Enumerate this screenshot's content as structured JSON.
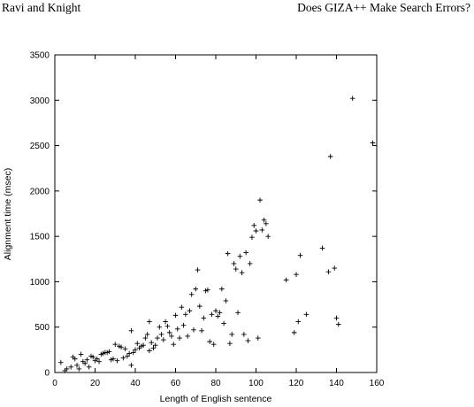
{
  "header": {
    "left": "Ravi and Knight",
    "right": "Does GIZA++ Make Search Errors?"
  },
  "chart_data": {
    "type": "scatter",
    "title": "",
    "xlabel": "Length of English sentence",
    "ylabel": "Alignment time (msec)",
    "xlim": [
      0,
      160
    ],
    "ylim": [
      0,
      3500
    ],
    "xticks": [
      0,
      20,
      40,
      60,
      80,
      100,
      120,
      140,
      160
    ],
    "yticks": [
      0,
      500,
      1000,
      1500,
      2000,
      2500,
      3000,
      3500
    ],
    "xtick_labels": [
      "0",
      "20",
      "40",
      "60",
      "80",
      "100",
      "120",
      "140",
      "160"
    ],
    "ytick_labels": [
      "0",
      "500",
      "1000",
      "1500",
      "2000",
      "2500",
      "3000",
      "3500"
    ],
    "grid": false,
    "marker": "+",
    "series": [
      {
        "points": [
          [
            3,
            110
          ],
          [
            5,
            20
          ],
          [
            6,
            40
          ],
          [
            8,
            60
          ],
          [
            9,
            170
          ],
          [
            10,
            150
          ],
          [
            11,
            80
          ],
          [
            12,
            40
          ],
          [
            13,
            200
          ],
          [
            14,
            120
          ],
          [
            15,
            100
          ],
          [
            16,
            140
          ],
          [
            17,
            60
          ],
          [
            18,
            180
          ],
          [
            19,
            170
          ],
          [
            20,
            130
          ],
          [
            21,
            150
          ],
          [
            22,
            120
          ],
          [
            23,
            200
          ],
          [
            24,
            210
          ],
          [
            25,
            220
          ],
          [
            26,
            220
          ],
          [
            27,
            230
          ],
          [
            28,
            140
          ],
          [
            29,
            150
          ],
          [
            30,
            310
          ],
          [
            31,
            130
          ],
          [
            32,
            290
          ],
          [
            33,
            280
          ],
          [
            34,
            160
          ],
          [
            35,
            260
          ],
          [
            36,
            180
          ],
          [
            37,
            210
          ],
          [
            38,
            80
          ],
          [
            38,
            460
          ],
          [
            39,
            220
          ],
          [
            40,
            250
          ],
          [
            41,
            320
          ],
          [
            42,
            270
          ],
          [
            43,
            290
          ],
          [
            44,
            300
          ],
          [
            45,
            380
          ],
          [
            46,
            420
          ],
          [
            47,
            560
          ],
          [
            47,
            240
          ],
          [
            48,
            330
          ],
          [
            49,
            270
          ],
          [
            50,
            300
          ],
          [
            51,
            380
          ],
          [
            52,
            500
          ],
          [
            53,
            420
          ],
          [
            54,
            360
          ],
          [
            55,
            560
          ],
          [
            56,
            510
          ],
          [
            57,
            440
          ],
          [
            58,
            400
          ],
          [
            59,
            310
          ],
          [
            60,
            630
          ],
          [
            61,
            480
          ],
          [
            62,
            380
          ],
          [
            63,
            720
          ],
          [
            64,
            520
          ],
          [
            65,
            640
          ],
          [
            66,
            400
          ],
          [
            67,
            680
          ],
          [
            68,
            860
          ],
          [
            69,
            470
          ],
          [
            70,
            920
          ],
          [
            71,
            1130
          ],
          [
            72,
            730
          ],
          [
            73,
            460
          ],
          [
            74,
            600
          ],
          [
            75,
            900
          ],
          [
            76,
            910
          ],
          [
            77,
            340
          ],
          [
            78,
            640
          ],
          [
            79,
            310
          ],
          [
            80,
            680
          ],
          [
            81,
            620
          ],
          [
            82,
            660
          ],
          [
            83,
            920
          ],
          [
            84,
            540
          ],
          [
            85,
            790
          ],
          [
            86,
            1310
          ],
          [
            87,
            320
          ],
          [
            88,
            420
          ],
          [
            89,
            1200
          ],
          [
            90,
            1140
          ],
          [
            91,
            660
          ],
          [
            92,
            1280
          ],
          [
            93,
            1100
          ],
          [
            94,
            420
          ],
          [
            95,
            1320
          ],
          [
            96,
            350
          ],
          [
            97,
            1200
          ],
          [
            98,
            1490
          ],
          [
            99,
            1620
          ],
          [
            100,
            1560
          ],
          [
            101,
            380
          ],
          [
            102,
            1900
          ],
          [
            103,
            1570
          ],
          [
            104,
            1680
          ],
          [
            105,
            1640
          ],
          [
            106,
            1500
          ],
          [
            115,
            1020
          ],
          [
            119,
            440
          ],
          [
            120,
            1080
          ],
          [
            121,
            560
          ],
          [
            122,
            1290
          ],
          [
            125,
            640
          ],
          [
            133,
            1370
          ],
          [
            136,
            1110
          ],
          [
            137,
            2380
          ],
          [
            139,
            1150
          ],
          [
            140,
            600
          ],
          [
            141,
            530
          ],
          [
            148,
            3020
          ],
          [
            158,
            2530
          ]
        ]
      }
    ]
  }
}
